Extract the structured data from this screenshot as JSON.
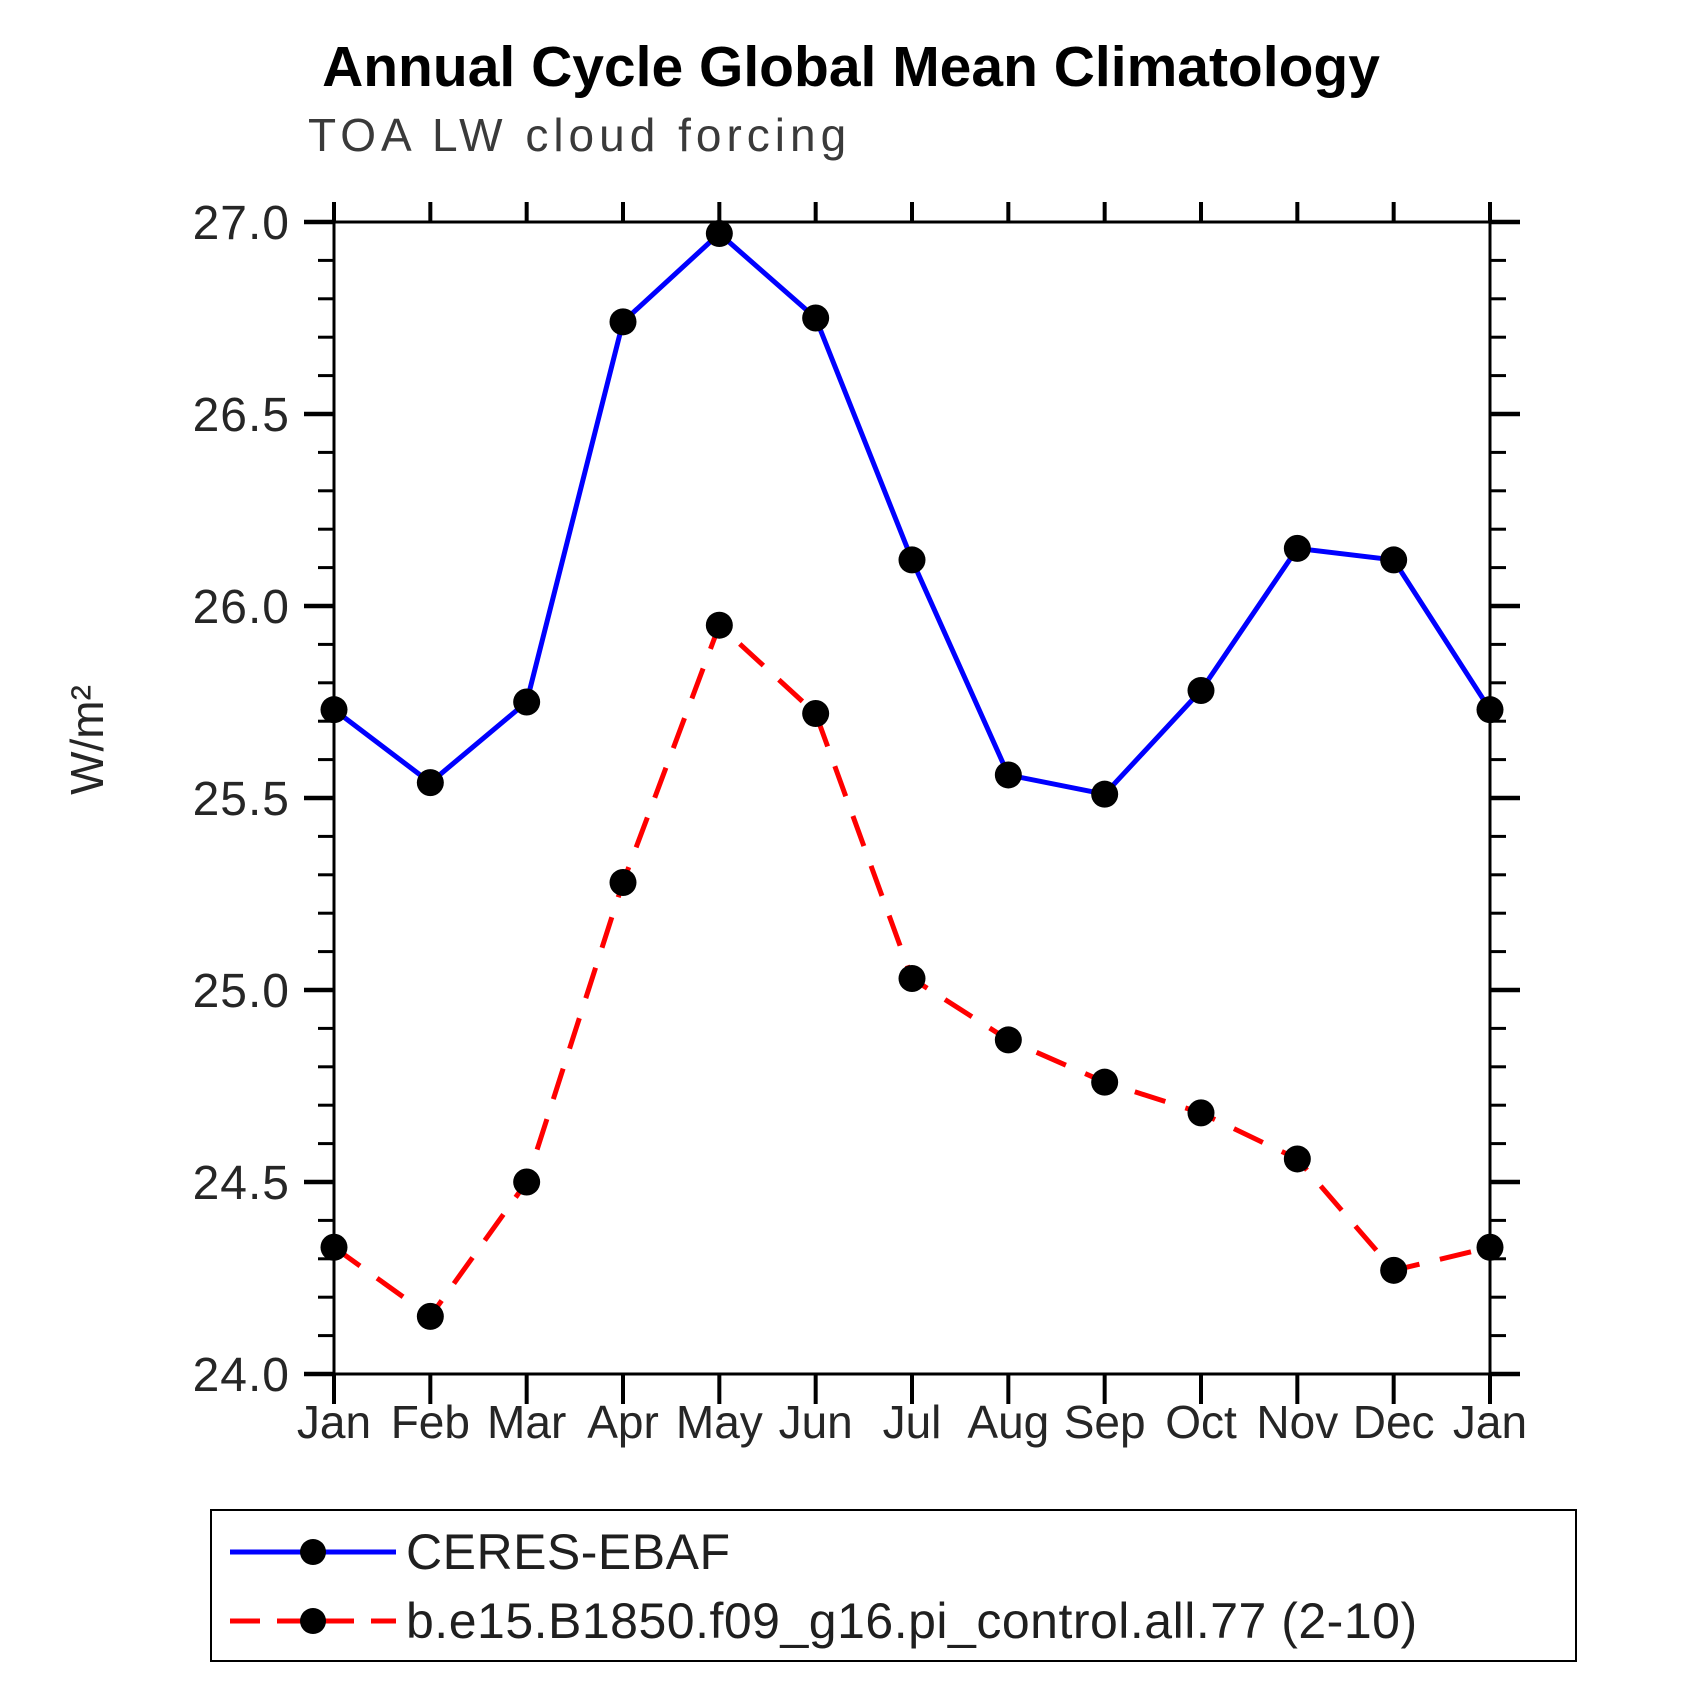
{
  "chart_data": {
    "type": "line",
    "title": "Annual Cycle Global Mean Climatology",
    "subtitle": "TOA LW cloud forcing",
    "ylabel": "W/m²",
    "xlabel": "",
    "categories": [
      "Jan",
      "Feb",
      "Mar",
      "Apr",
      "May",
      "Jun",
      "Jul",
      "Aug",
      "Sep",
      "Oct",
      "Nov",
      "Dec",
      "Jan"
    ],
    "ylim": [
      24.0,
      27.0
    ],
    "ytick_major": [
      24.0,
      24.5,
      25.0,
      25.5,
      26.0,
      26.5,
      27.0
    ],
    "ytick_major_labels": [
      "24.0",
      "24.5",
      "25.0",
      "25.5",
      "26.0",
      "26.5",
      "27.0"
    ],
    "ytick_minor_step": 0.1,
    "grid": false,
    "legend_position": "below-plot-boxed",
    "frame_color": "#000000",
    "marker_shape": "filled-circle",
    "series": [
      {
        "name": "CERES-EBAF",
        "color": "#0000FF",
        "line_style": "solid",
        "marker_color": "#000000",
        "values": [
          25.73,
          25.54,
          25.75,
          26.74,
          26.97,
          26.75,
          26.12,
          25.56,
          25.51,
          25.78,
          26.15,
          26.12,
          25.73
        ]
      },
      {
        "name": "b.e15.B1850.f09_g16.pi_control.all.77 (2-10)",
        "color": "#FF0000",
        "line_style": "dashed",
        "marker_color": "#000000",
        "values": [
          24.33,
          24.15,
          24.5,
          25.28,
          25.95,
          25.72,
          25.03,
          24.87,
          24.76,
          24.68,
          24.56,
          24.27,
          24.33
        ]
      }
    ]
  }
}
